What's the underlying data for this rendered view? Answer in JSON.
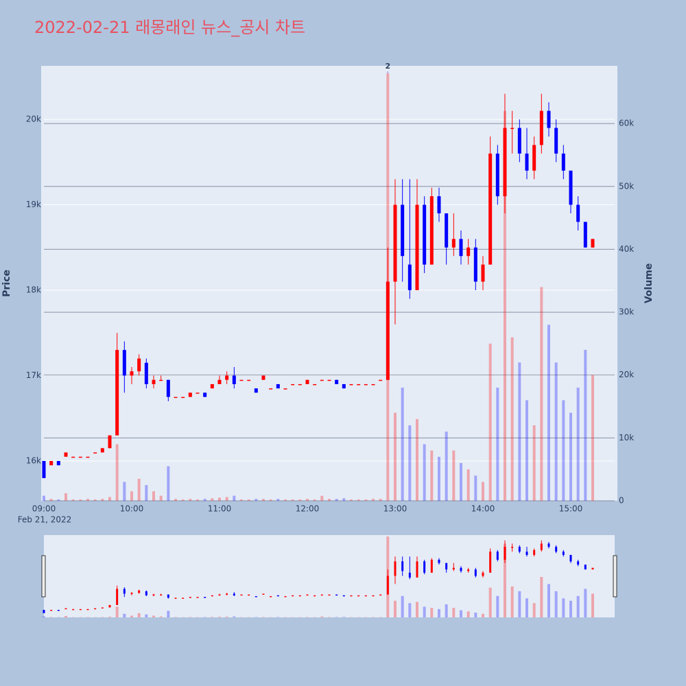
{
  "chart_data": {
    "type": "candlestick",
    "title": "2022-02-21 래몽래인 뉴스_공시 차트",
    "y_title": "Price",
    "y2_title": "Volume",
    "x_date_label": "Feb 21, 2022",
    "annotation": {
      "text": "2",
      "x": "12:55"
    },
    "increasing_color": "#ff0000",
    "decreasing_color": "#0000ff",
    "x": [
      "09:00",
      "09:05",
      "09:10",
      "09:15",
      "09:20",
      "09:25",
      "09:30",
      "09:35",
      "09:40",
      "09:45",
      "09:50",
      "09:55",
      "10:00",
      "10:05",
      "10:10",
      "10:15",
      "10:20",
      "10:25",
      "10:30",
      "10:35",
      "10:40",
      "10:45",
      "10:50",
      "10:55",
      "11:00",
      "11:05",
      "11:10",
      "11:15",
      "11:20",
      "11:25",
      "11:30",
      "11:35",
      "11:40",
      "11:45",
      "11:50",
      "11:55",
      "12:00",
      "12:05",
      "12:10",
      "12:15",
      "12:20",
      "12:25",
      "12:30",
      "12:35",
      "12:40",
      "12:45",
      "12:50",
      "12:55",
      "13:00",
      "13:05",
      "13:10",
      "13:15",
      "13:20",
      "13:25",
      "13:30",
      "13:35",
      "13:40",
      "13:45",
      "13:50",
      "13:55",
      "14:00",
      "14:05",
      "14:10",
      "14:15",
      "14:20",
      "14:25",
      "14:30",
      "14:35",
      "14:40",
      "14:45",
      "14:50",
      "14:55",
      "15:00",
      "15:05",
      "15:10",
      "15:15"
    ],
    "open": [
      16000,
      15950,
      16000,
      16050,
      16050,
      16050,
      16050,
      16100,
      16100,
      16150,
      16300,
      17300,
      17000,
      17050,
      17150,
      16900,
      16950,
      16950,
      16750,
      16750,
      16750,
      16800,
      16800,
      16850,
      16900,
      16950,
      17000,
      16950,
      16950,
      16850,
      16950,
      16850,
      16900,
      16850,
      16900,
      16900,
      16900,
      16900,
      16950,
      16950,
      16950,
      16900,
      16900,
      16900,
      16900,
      16900,
      16950,
      16950,
      18100,
      19000,
      18300,
      18000,
      19000,
      18300,
      19100,
      18900,
      18500,
      18600,
      18400,
      18500,
      18100,
      18300,
      19600,
      19100,
      19900,
      19900,
      19600,
      19400,
      19700,
      20100,
      19900,
      19600,
      19400,
      19000,
      18800,
      18500
    ],
    "high": [
      16000,
      16000,
      16000,
      16100,
      16050,
      16050,
      16050,
      16100,
      16150,
      16300,
      17500,
      17400,
      17100,
      17250,
      17200,
      17000,
      17000,
      16950,
      16750,
      16750,
      16800,
      16800,
      16800,
      16900,
      17000,
      17050,
      17100,
      16950,
      16950,
      16850,
      17000,
      16850,
      16900,
      16850,
      16900,
      16900,
      16950,
      16900,
      16950,
      16950,
      16950,
      16900,
      16900,
      16900,
      16900,
      16900,
      16950,
      18500,
      19300,
      19300,
      19300,
      19300,
      19100,
      19200,
      19200,
      18900,
      18900,
      18700,
      18600,
      18600,
      18400,
      19800,
      19700,
      20300,
      20100,
      20000,
      19900,
      19800,
      20300,
      20200,
      20000,
      19700,
      19400,
      19100,
      18800,
      18600
    ],
    "low": [
      15800,
      15950,
      15950,
      16050,
      16050,
      16050,
      16050,
      16100,
      16100,
      16150,
      16300,
      16800,
      16900,
      17000,
      16850,
      16850,
      16950,
      16700,
      16750,
      16750,
      16750,
      16800,
      16750,
      16850,
      16900,
      16900,
      16850,
      16950,
      16950,
      16800,
      16950,
      16850,
      16850,
      16850,
      16900,
      16900,
      16900,
      16900,
      16950,
      16950,
      16900,
      16850,
      16900,
      16900,
      16900,
      16900,
      16950,
      16950,
      17600,
      18100,
      17900,
      18000,
      18200,
      18300,
      18800,
      18300,
      18400,
      18300,
      18300,
      18000,
      18000,
      18300,
      19000,
      18900,
      19600,
      19500,
      19300,
      19300,
      19600,
      19800,
      19500,
      19300,
      18900,
      18700,
      18500,
      18500
    ],
    "close": [
      15800,
      16000,
      15950,
      16100,
      16050,
      16050,
      16050,
      16100,
      16150,
      16300,
      17300,
      17000,
      17050,
      17200,
      16900,
      16950,
      16950,
      16750,
      16750,
      16750,
      16800,
      16800,
      16750,
      16900,
      16950,
      17000,
      16900,
      16950,
      16950,
      16800,
      17000,
      16850,
      16850,
      16850,
      16900,
      16900,
      16950,
      16900,
      16950,
      16950,
      16900,
      16850,
      16900,
      16900,
      16900,
      16900,
      16950,
      18100,
      19000,
      18400,
      18000,
      19000,
      18300,
      19100,
      18900,
      18500,
      18600,
      18400,
      18500,
      18100,
      18300,
      19600,
      19100,
      19900,
      19900,
      19600,
      19400,
      19700,
      20100,
      19900,
      19600,
      19400,
      19000,
      18800,
      18500,
      18600
    ],
    "volume": [
      800,
      300,
      200,
      1200,
      200,
      200,
      300,
      200,
      300,
      600,
      9000,
      3000,
      1500,
      3500,
      2500,
      1500,
      800,
      5500,
      300,
      200,
      300,
      200,
      300,
      400,
      500,
      600,
      800,
      200,
      200,
      300,
      300,
      200,
      300,
      200,
      200,
      200,
      300,
      200,
      800,
      300,
      300,
      400,
      200,
      200,
      200,
      300,
      300,
      68000,
      14000,
      18000,
      12000,
      13000,
      9000,
      8000,
      7000,
      11000,
      8000,
      6000,
      5000,
      4000,
      3000,
      25000,
      18000,
      62000,
      26000,
      22000,
      16000,
      12000,
      34000,
      28000,
      22000,
      16000,
      14000,
      18000,
      24000,
      20000
    ],
    "xlim": [
      "09:00",
      "15:30"
    ],
    "xticks": [
      "09:00",
      "10:00",
      "11:00",
      "12:00",
      "13:00",
      "14:00",
      "15:00"
    ],
    "ylim": [
      15534,
      20627
    ],
    "yticks": [
      {
        "value": 16000,
        "label": "16k"
      },
      {
        "value": 17000,
        "label": "17k"
      },
      {
        "value": 18000,
        "label": "18k"
      },
      {
        "value": 19000,
        "label": "19k"
      },
      {
        "value": 20000,
        "label": "20k"
      }
    ],
    "y2lim": [
      0,
      69180
    ],
    "y2ticks": [
      0,
      {
        "value": 10000,
        "label": "10k"
      },
      {
        "value": 20000,
        "label": "20k"
      },
      {
        "value": 30000,
        "label": "30k"
      },
      {
        "value": 40000,
        "label": "40k"
      },
      {
        "value": 50000,
        "label": "50k"
      },
      {
        "value": 60000,
        "label": "60k"
      }
    ],
    "grid": true,
    "rangeslider": true
  }
}
